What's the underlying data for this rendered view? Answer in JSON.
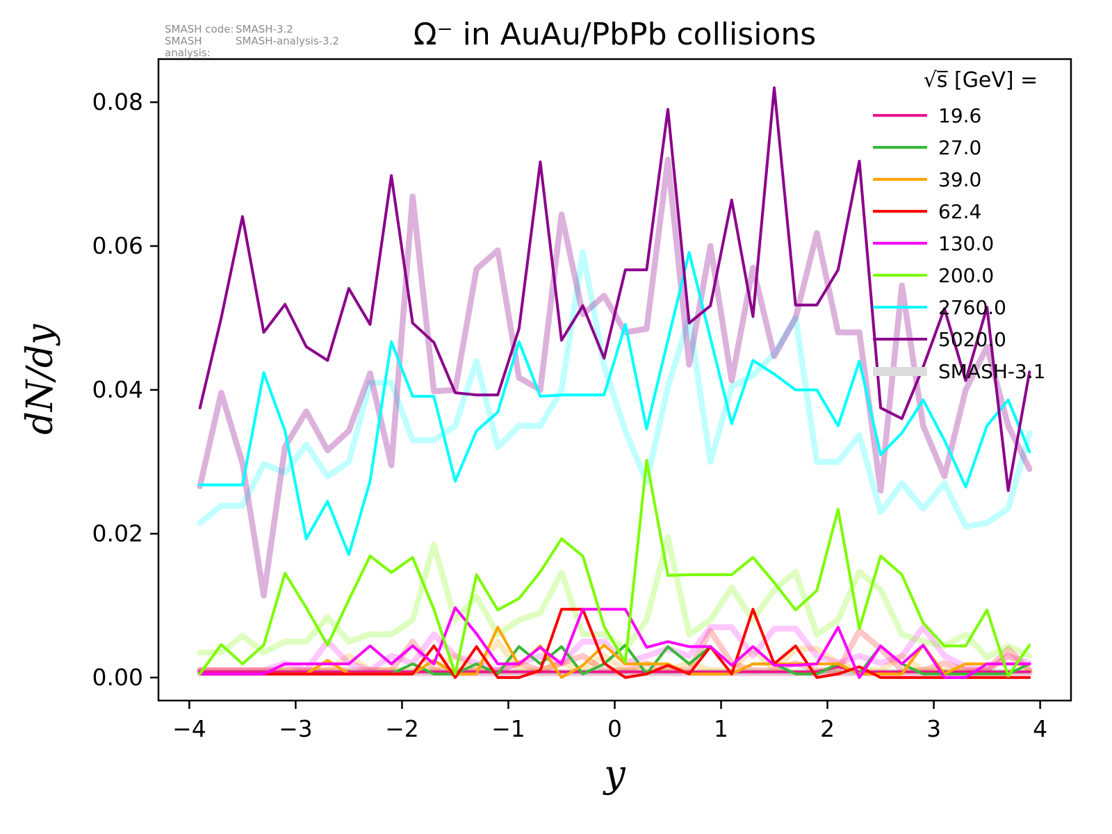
{
  "annotation": {
    "rows": [
      {
        "label": "SMASH code:",
        "value": "SMASH-3.2"
      },
      {
        "label": "SMASH analysis:",
        "value": "SMASH-analysis-3.2"
      }
    ]
  },
  "legend": {
    "title": "√s̅  [GeV] =",
    "entries": [
      {
        "label": "19.6",
        "color": "#f01490",
        "thick": false
      },
      {
        "label": "27.0",
        "color": "#38b838",
        "thick": false
      },
      {
        "label": "39.0",
        "color": "#ffa500",
        "thick": false
      },
      {
        "label": "62.4",
        "color": "#fe0000",
        "thick": false
      },
      {
        "label": "130.0",
        "color": "#fb00fb",
        "thick": false
      },
      {
        "label": "200.0",
        "color": "#7cfc00",
        "thick": false
      },
      {
        "label": "2760.0",
        "color": "#00ffff",
        "thick": false
      },
      {
        "label": "5020.0",
        "color": "#8b008b",
        "thick": false
      },
      {
        "label": "SMASH-3.1",
        "color": "#dcdcdc",
        "thick": true
      }
    ]
  },
  "chart_data": {
    "type": "line",
    "title": "Ω⁻ in AuAu/PbPb collisions",
    "xlabel": "y",
    "ylabel": "dN/dy",
    "xlim": [
      -4.29,
      4.29
    ],
    "ylim": [
      -0.0032,
      0.086
    ],
    "grid": false,
    "legend_position": "upper right",
    "xticks": [
      -4,
      -3,
      -2,
      -1,
      0,
      1,
      2,
      3,
      4
    ],
    "xtick_labels": [
      "−4",
      "−3",
      "−2",
      "−1",
      "0",
      "1",
      "2",
      "3",
      "4"
    ],
    "yticks": [
      0.0,
      0.02,
      0.04,
      0.06,
      0.08
    ],
    "ytick_labels": [
      "0.00",
      "0.02",
      "0.04",
      "0.06",
      "0.08"
    ],
    "x": [
      -3.9,
      -3.7,
      -3.5,
      -3.3,
      -3.1,
      -2.9,
      -2.7,
      -2.5,
      -2.3,
      -2.1,
      -1.9,
      -1.7,
      -1.5,
      -1.3,
      -1.1,
      -0.9,
      -0.7,
      -0.5,
      -0.3,
      -0.1,
      0.1,
      0.3,
      0.5,
      0.7,
      0.9,
      1.1,
      1.3,
      1.5,
      1.7,
      1.9,
      2.1,
      2.3,
      2.5,
      2.7,
      2.9,
      3.1,
      3.3,
      3.5,
      3.7,
      3.9
    ],
    "series": [
      {
        "name": "SMASH-3.1 19.6",
        "color": "#f01490",
        "width": 8.5,
        "opacity": 0.22,
        "values": [
          0.0006,
          0.0006,
          0.0006,
          0.0006,
          0.0006,
          0.0006,
          0.0006,
          0.0006,
          0.0006,
          0.0006,
          0.0006,
          0.0006,
          0.0006,
          0.0006,
          0.0006,
          0.0006,
          0.0006,
          0.0006,
          0.0006,
          0.0006,
          0.0006,
          0.0006,
          0.0006,
          0.0006,
          0.0006,
          0.0006,
          0.0006,
          0.0006,
          0.0006,
          0.0006,
          0.0006,
          0.0006,
          0.0006,
          0.0006,
          0.0006,
          0.0006,
          0.0006,
          0.0006,
          0.0006,
          0.0006
        ]
      },
      {
        "name": "SMASH-3.1 27.0",
        "color": "#38b838",
        "width": 8.5,
        "opacity": 0.22,
        "values": [
          0.0008,
          0.0008,
          0.0008,
          0.0008,
          0.0008,
          0.0008,
          0.0008,
          0.0008,
          0.0008,
          0.0008,
          0.0008,
          0.0008,
          0.0008,
          0.0008,
          0.0008,
          0.0008,
          0.0008,
          0.0008,
          0.0008,
          0.0008,
          0.0008,
          0.0008,
          0.0008,
          0.0008,
          0.0008,
          0.0008,
          0.0008,
          0.0008,
          0.0008,
          0.0008,
          0.0008,
          0.0008,
          0.0008,
          0.0008,
          0.0008,
          0.0008,
          0.0008,
          0.0008,
          0.0008,
          0.0008
        ]
      },
      {
        "name": "SMASH-3.1 39.0",
        "color": "#ffa500",
        "width": 8.5,
        "opacity": 0.25,
        "values": [
          0.001,
          0.001,
          0.001,
          0.001,
          0.001,
          0.001,
          0.001,
          0.003,
          0.001,
          0.001,
          0.001,
          0.001,
          0.003,
          0.001,
          0.005,
          0.001,
          0.001,
          0.002,
          0.001,
          0.003,
          0.001,
          0.001,
          0.001,
          0.002,
          0.001,
          0.001,
          0.004,
          0.001,
          0.004,
          0.004,
          0.002,
          0.001,
          0.001,
          0.003,
          0.001,
          0.001,
          0.001,
          0.001,
          0.003,
          0.001
        ]
      },
      {
        "name": "SMASH-3.1 62.4",
        "color": "#fe0000",
        "width": 8.5,
        "opacity": 0.22,
        "values": [
          0.001,
          0.001,
          0.001,
          0.001,
          0.001,
          0.001,
          0.001,
          0.001,
          0.001,
          0.001,
          0.005,
          0.001,
          0.001,
          0.001,
          0.001,
          0.002,
          0.001,
          0.002,
          0.003,
          0.001,
          0.001,
          0.002,
          0.001,
          0.001,
          0.0065,
          0.002,
          0.001,
          0.001,
          0.002,
          0.001,
          0.001,
          0.0065,
          0.004,
          0.001,
          0.001,
          0.002,
          0.001,
          0.001,
          0.004,
          0.001
        ]
      },
      {
        "name": "SMASH-3.1 130.0",
        "color": "#fb00fb",
        "width": 8.5,
        "opacity": 0.22,
        "values": [
          0.001,
          0.001,
          0.001,
          0.001,
          0.002,
          0.001,
          0.005,
          0.002,
          0.001,
          0.003,
          0.002,
          0.006,
          0.003,
          0.002,
          0.001,
          0.002,
          0.003,
          0.002,
          0.005,
          0.005,
          0.002,
          0.003,
          0.004,
          0.003,
          0.007,
          0.007,
          0.003,
          0.0068,
          0.0068,
          0.003,
          0.002,
          0.003,
          0.002,
          0.003,
          0.007,
          0.003,
          0.0015,
          0.001,
          0.003,
          0.002
        ]
      },
      {
        "name": "SMASH-3.1 200.0",
        "color": "#7cfc00",
        "width": 8.5,
        "opacity": 0.25,
        "values": [
          0.0035,
          0.0035,
          0.0058,
          0.0035,
          0.005,
          0.005,
          0.0084,
          0.005,
          0.006,
          0.006,
          0.008,
          0.0185,
          0.008,
          0.0113,
          0.006,
          0.008,
          0.009,
          0.0146,
          0.006,
          0.006,
          0.004,
          0.008,
          0.0195,
          0.006,
          0.008,
          0.0125,
          0.008,
          0.0122,
          0.0147,
          0.006,
          0.008,
          0.0147,
          0.0122,
          0.006,
          0.005,
          0.0044,
          0.006,
          0.0028,
          0.0044,
          0.003
        ]
      },
      {
        "name": "SMASH-3.1 2760.0",
        "color": "#00ffff",
        "width": 8.5,
        "opacity": 0.25,
        "values": [
          0.0215,
          0.0239,
          0.0239,
          0.0297,
          0.0285,
          0.0324,
          0.028,
          0.03,
          0.041,
          0.041,
          0.033,
          0.033,
          0.035,
          0.044,
          0.032,
          0.035,
          0.035,
          0.04,
          0.0592,
          0.0433,
          0.0343,
          0.0272,
          0.0404,
          0.05,
          0.03,
          0.0404,
          0.042,
          0.045,
          0.05,
          0.03,
          0.03,
          0.0337,
          0.023,
          0.027,
          0.0235,
          0.027,
          0.021,
          0.0215,
          0.0235,
          0.034
        ]
      },
      {
        "name": "SMASH-3.1 5020.0",
        "color": "#8b008b",
        "width": 8.5,
        "opacity": 0.3,
        "values": [
          0.0266,
          0.0396,
          0.0298,
          0.0114,
          0.0321,
          0.037,
          0.0316,
          0.0343,
          0.0423,
          0.0295,
          0.0669,
          0.0398,
          0.04,
          0.0568,
          0.0594,
          0.0417,
          0.04,
          0.0644,
          0.0505,
          0.0531,
          0.048,
          0.0485,
          0.072,
          0.0435,
          0.06,
          0.0413,
          0.057,
          0.0447,
          0.05,
          0.0618,
          0.048,
          0.048,
          0.026,
          0.0545,
          0.035,
          0.028,
          0.04,
          0.046,
          0.035,
          0.029
        ]
      },
      {
        "name": "19.6",
        "color": "#f01490",
        "width": 4,
        "opacity": 1,
        "values": [
          0.0008,
          0.0008,
          0.0008,
          0.0008,
          0.0008,
          0.0008,
          0.0008,
          0.0008,
          0.0008,
          0.0008,
          0.0008,
          0.0008,
          0.0008,
          0.0008,
          0.0008,
          0.0008,
          0.0008,
          0.0008,
          0.0008,
          0.0008,
          0.0008,
          0.0008,
          0.0008,
          0.0008,
          0.0008,
          0.0008,
          0.0008,
          0.0008,
          0.0008,
          0.0008,
          0.0015,
          0.0008,
          0.0008,
          0.0008,
          0.0008,
          0.0008,
          0.0008,
          0.0008,
          0.0008,
          0.0008
        ]
      },
      {
        "name": "27.0",
        "color": "#38b838",
        "width": 4,
        "opacity": 1,
        "values": [
          0.0005,
          0.0005,
          0.0005,
          0.0005,
          0.0005,
          0.0005,
          0.0005,
          0.0005,
          0.0005,
          0.0005,
          0.0019,
          0.0005,
          0.0005,
          0.0019,
          0.0005,
          0.0043,
          0.0019,
          0.0043,
          0.0005,
          0.0019,
          0.0045,
          0.0005,
          0.0043,
          0.0019,
          0.0043,
          0.0005,
          0.0019,
          0.0019,
          0.0005,
          0.0005,
          0.0019,
          0.0005,
          0.0044,
          0.0019,
          0.0005,
          0.0005,
          0.0005,
          0.0005,
          0.0005,
          0.0019
        ]
      },
      {
        "name": "39.0",
        "color": "#ffa500",
        "width": 4,
        "opacity": 1,
        "values": [
          0.0005,
          0.0005,
          0.0005,
          0.0005,
          0.0005,
          0.0005,
          0.0024,
          0.0005,
          0.0005,
          0.0005,
          0.0005,
          0.0024,
          0.0005,
          0.0005,
          0.007,
          0.0017,
          0.0044,
          0.0,
          0.0017,
          0.0045,
          0.0019,
          0.0019,
          0.0019,
          0.0005,
          0.0005,
          0.0005,
          0.0019,
          0.0019,
          0.0019,
          0.0019,
          0.0019,
          0.0005,
          0.0005,
          0.0005,
          0.0045,
          0.0005,
          0.0019,
          0.0019,
          0.0019,
          0.0019
        ]
      },
      {
        "name": "62.4",
        "color": "#fe0000",
        "width": 4,
        "opacity": 1,
        "values": [
          0.0005,
          0.0005,
          0.0005,
          0.0005,
          0.0005,
          0.0005,
          0.0005,
          0.0005,
          0.0005,
          0.0005,
          0.0005,
          0.0044,
          0.0,
          0.0043,
          0.0,
          0.0,
          0.001,
          0.0095,
          0.0095,
          0.002,
          0.0,
          0.0005,
          0.0017,
          0.0005,
          0.0043,
          0.0005,
          0.0095,
          0.0019,
          0.0044,
          0.0,
          0.0005,
          0.0015,
          0.0,
          0.0,
          0.0,
          0.0,
          0.0,
          0.0,
          0.0,
          0.0
        ]
      },
      {
        "name": "130.0",
        "color": "#fb00fb",
        "width": 4,
        "opacity": 1,
        "values": [
          0.0005,
          0.0005,
          0.0005,
          0.0005,
          0.0019,
          0.0019,
          0.0019,
          0.0019,
          0.0044,
          0.0019,
          0.0044,
          0.0019,
          0.0097,
          0.0061,
          0.0019,
          0.0019,
          0.0042,
          0.0019,
          0.0095,
          0.0095,
          0.0095,
          0.0042,
          0.005,
          0.0043,
          0.0043,
          0.0017,
          0.0043,
          0.0017,
          0.0017,
          0.0019,
          0.007,
          0.0,
          0.0044,
          0.0019,
          0.0045,
          0.0,
          0.0,
          0.0019,
          0.0019,
          0.0019
        ]
      },
      {
        "name": "200.0",
        "color": "#7cfc00",
        "width": 4,
        "opacity": 1,
        "values": [
          0.0005,
          0.0046,
          0.0019,
          0.0045,
          0.0145,
          0.0097,
          0.0045,
          0.0108,
          0.0169,
          0.0146,
          0.0167,
          0.0095,
          0.0005,
          0.0143,
          0.0094,
          0.011,
          0.0147,
          0.0193,
          0.0169,
          0.0071,
          0.0021,
          0.0302,
          0.0142,
          0.0143,
          0.0143,
          0.0143,
          0.0167,
          0.0132,
          0.0094,
          0.0121,
          0.0234,
          0.0068,
          0.0169,
          0.0143,
          0.0076,
          0.0044,
          0.0044,
          0.0094,
          0.0002,
          0.0045
        ]
      },
      {
        "name": "2760.0",
        "color": "#00ffff",
        "width": 4,
        "opacity": 1,
        "values": [
          0.0268,
          0.0268,
          0.0268,
          0.0424,
          0.0343,
          0.0193,
          0.0245,
          0.0171,
          0.0273,
          0.0467,
          0.0391,
          0.0391,
          0.0273,
          0.0343,
          0.0369,
          0.0467,
          0.0391,
          0.0393,
          0.0393,
          0.0393,
          0.0491,
          0.0346,
          0.0469,
          0.0591,
          0.0472,
          0.0353,
          0.0441,
          0.0422,
          0.04,
          0.04,
          0.035,
          0.044,
          0.031,
          0.034,
          0.0386,
          0.033,
          0.0265,
          0.035,
          0.0386,
          0.0314
        ]
      },
      {
        "name": "5020.0",
        "color": "#8b008b",
        "width": 4,
        "opacity": 1,
        "values": [
          0.0375,
          0.05,
          0.0641,
          0.048,
          0.0519,
          0.046,
          0.0441,
          0.0541,
          0.0491,
          0.0698,
          0.0493,
          0.0466,
          0.0396,
          0.0393,
          0.0393,
          0.0485,
          0.0717,
          0.0469,
          0.0517,
          0.0444,
          0.0567,
          0.0567,
          0.079,
          0.0493,
          0.0517,
          0.0664,
          0.0502,
          0.082,
          0.0518,
          0.0518,
          0.0567,
          0.0718,
          0.0375,
          0.036,
          0.0432,
          0.0513,
          0.0413,
          0.0515,
          0.026,
          0.0425
        ]
      }
    ]
  }
}
